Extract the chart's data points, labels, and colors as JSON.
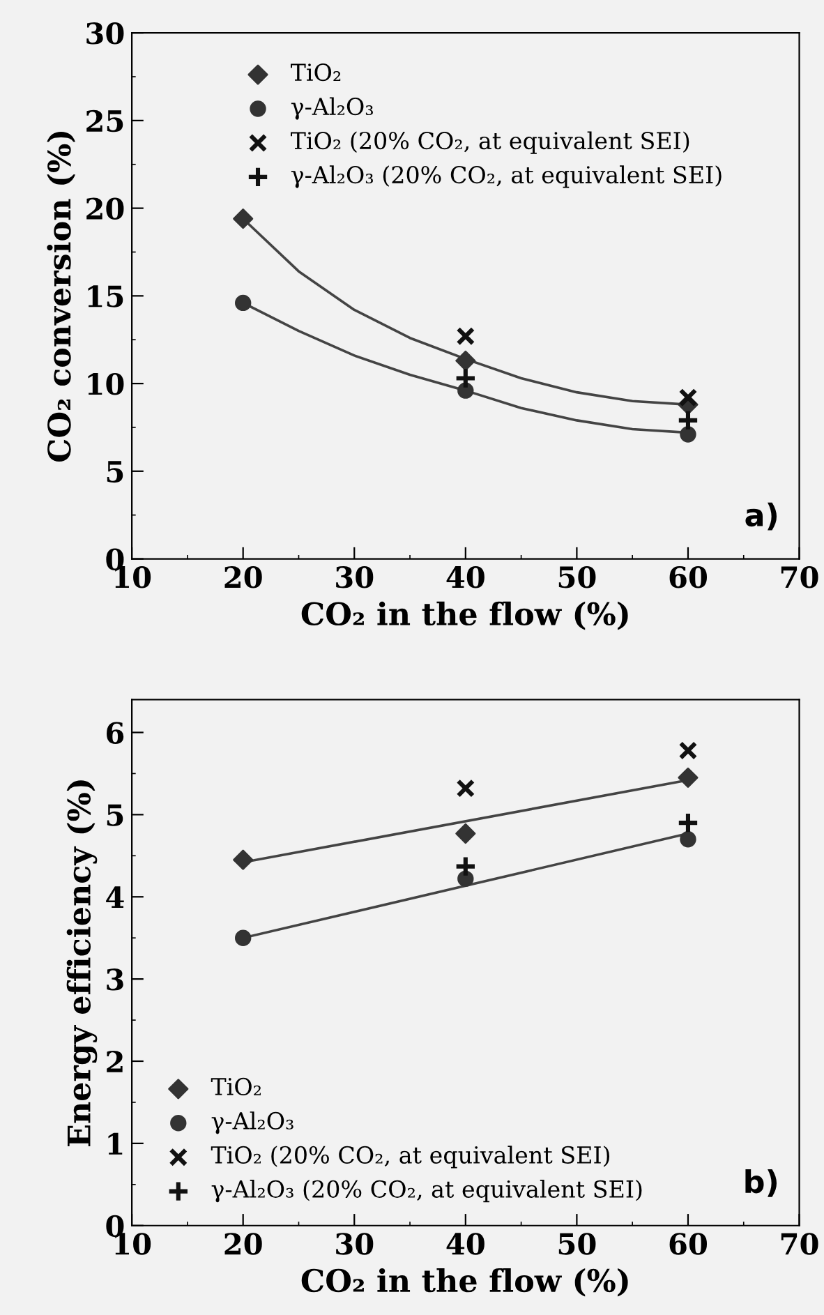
{
  "chart_data": [
    {
      "type": "scatter",
      "xlabel": "CO₂ in the flow (%)",
      "ylabel": "CO₂ conversion (%)",
      "xlim": [
        10,
        70
      ],
      "xticks": [
        10,
        20,
        30,
        40,
        50,
        60,
        70
      ],
      "ylim": [
        0,
        30
      ],
      "yticks": [
        0,
        5,
        10,
        15,
        20,
        25,
        30
      ],
      "grid": false,
      "legend": "top",
      "annotations": [
        "a)"
      ],
      "series": [
        {
          "name": "TiO₂",
          "type": "scatter",
          "marker": "diamond",
          "color": "#333333",
          "x": [
            20,
            40,
            60
          ],
          "values": [
            19.4,
            11.3,
            8.8
          ]
        },
        {
          "name": "γ-Al₂O₃",
          "type": "scatter",
          "marker": "circle",
          "color": "#333333",
          "x": [
            20,
            40,
            60
          ],
          "values": [
            14.6,
            9.6,
            7.1
          ]
        },
        {
          "name": "TiO₂ (20% CO₂, at equivalent SEI)",
          "type": "scatter",
          "marker": "cross",
          "color": "#111111",
          "x": [
            40,
            60
          ],
          "values": [
            12.7,
            9.2
          ]
        },
        {
          "name": "γ-Al₂O₃ (20% CO₂, at equivalent SEI)",
          "type": "scatter",
          "marker": "plus",
          "color": "#111111",
          "x": [
            40,
            60
          ],
          "values": [
            10.3,
            7.9
          ]
        },
        {
          "type": "line",
          "color": "#444444",
          "line_style": "solid",
          "x": [
            20,
            25,
            30,
            35,
            40,
            45,
            50,
            55,
            60
          ],
          "values": [
            19.4,
            16.4,
            14.2,
            12.6,
            11.4,
            10.3,
            9.5,
            9.0,
            8.8
          ]
        },
        {
          "type": "line",
          "color": "#444444",
          "line_style": "solid",
          "x": [
            20,
            25,
            30,
            35,
            40,
            45,
            50,
            55,
            60
          ],
          "values": [
            14.6,
            13.0,
            11.6,
            10.5,
            9.6,
            8.6,
            7.9,
            7.4,
            7.2
          ]
        }
      ]
    },
    {
      "type": "scatter",
      "xlabel": "CO₂ in the flow (%)",
      "ylabel": "Energy efficiency (%)",
      "xlim": [
        10,
        70
      ],
      "xticks": [
        10,
        20,
        30,
        40,
        50,
        60,
        70
      ],
      "ylim": [
        0,
        6.4
      ],
      "yticks": [
        0,
        1,
        2,
        3,
        4,
        5,
        6
      ],
      "grid": false,
      "legend": "bottom left",
      "annotations": [
        "b)"
      ],
      "series": [
        {
          "name": "TiO₂",
          "type": "scatter",
          "marker": "diamond",
          "color": "#333333",
          "x": [
            20,
            40,
            60
          ],
          "values": [
            4.45,
            4.77,
            5.45
          ]
        },
        {
          "name": "γ-Al₂O₃",
          "type": "scatter",
          "marker": "circle",
          "color": "#333333",
          "x": [
            20,
            40,
            60
          ],
          "values": [
            3.5,
            4.22,
            4.7
          ]
        },
        {
          "name": "TiO₂ (20% CO₂, at equivalent SEI)",
          "type": "scatter",
          "marker": "cross",
          "color": "#111111",
          "x": [
            40,
            60
          ],
          "values": [
            5.32,
            5.78
          ]
        },
        {
          "name": "γ-Al₂O₃ (20% CO₂, at equivalent SEI)",
          "type": "scatter",
          "marker": "plus",
          "color": "#111111",
          "x": [
            40,
            60
          ],
          "values": [
            4.37,
            4.9
          ]
        },
        {
          "type": "line",
          "color": "#444444",
          "line_style": "solid",
          "x": [
            20,
            60
          ],
          "values": [
            4.42,
            5.42
          ]
        },
        {
          "type": "line",
          "color": "#444444",
          "line_style": "solid",
          "x": [
            20,
            60
          ],
          "values": [
            3.5,
            4.77
          ]
        }
      ]
    }
  ]
}
